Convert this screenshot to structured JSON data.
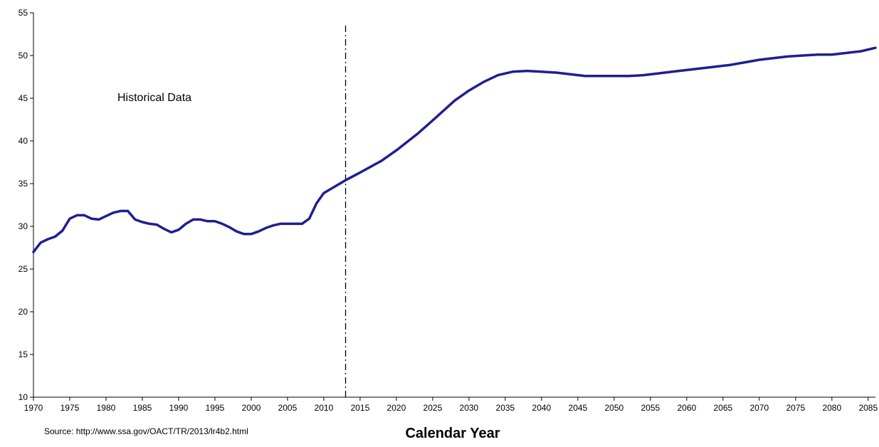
{
  "chart_data": {
    "type": "line",
    "title": "",
    "xlabel": "Calendar Year",
    "ylabel": "",
    "xlim": [
      1970,
      2086
    ],
    "ylim": [
      10,
      55
    ],
    "yticks": [
      10,
      15,
      20,
      25,
      30,
      35,
      40,
      45,
      50,
      55
    ],
    "xticks": [
      1970,
      1975,
      1980,
      1985,
      1990,
      1995,
      2000,
      2005,
      2010,
      2015,
      2020,
      2025,
      2030,
      2035,
      2040,
      2045,
      2050,
      2055,
      2060,
      2065,
      2070,
      2075,
      2080,
      2085
    ],
    "grid": false,
    "legend": "none",
    "divider_year": 2013,
    "annotation": "Historical Data",
    "source_note": "Source:  http://www.ssa.gov/OACT/TR/2013/lr4b2.html",
    "series_color": "#1f1f8f",
    "series": [
      {
        "x": [
          1970,
          1971,
          1972,
          1973,
          1974,
          1975,
          1976,
          1977,
          1978,
          1979,
          1980,
          1981,
          1982,
          1983,
          1984,
          1985,
          1986,
          1987,
          1988,
          1989,
          1990,
          1991,
          1992,
          1993,
          1994,
          1995,
          1996,
          1997,
          1998,
          1999,
          2000,
          2001,
          2002,
          2003,
          2004,
          2005,
          2006,
          2007,
          2008,
          2009,
          2010,
          2011,
          2012,
          2013,
          2015,
          2018,
          2020,
          2023,
          2025,
          2028,
          2030,
          2032,
          2034,
          2036,
          2038,
          2040,
          2042,
          2044,
          2046,
          2048,
          2050,
          2052,
          2054,
          2056,
          2058,
          2060,
          2062,
          2064,
          2066,
          2068,
          2070,
          2072,
          2074,
          2076,
          2078,
          2080,
          2082,
          2084,
          2086
        ],
        "y": [
          27.0,
          28.1,
          28.5,
          28.8,
          29.5,
          30.9,
          31.3,
          31.3,
          30.9,
          30.8,
          31.2,
          31.6,
          31.8,
          31.8,
          30.8,
          30.5,
          30.3,
          30.2,
          29.7,
          29.3,
          29.6,
          30.3,
          30.8,
          30.8,
          30.6,
          30.6,
          30.3,
          29.9,
          29.4,
          29.1,
          29.1,
          29.4,
          29.8,
          30.1,
          30.3,
          30.3,
          30.3,
          30.3,
          30.9,
          32.7,
          33.9,
          34.4,
          34.9,
          35.4,
          36.3,
          37.7,
          38.9,
          40.9,
          42.4,
          44.7,
          45.9,
          46.9,
          47.7,
          48.1,
          48.2,
          48.1,
          48.0,
          47.8,
          47.6,
          47.6,
          47.6,
          47.6,
          47.7,
          47.9,
          48.1,
          48.3,
          48.5,
          48.7,
          48.9,
          49.2,
          49.5,
          49.7,
          49.9,
          50.0,
          50.1,
          50.1,
          50.3,
          50.5,
          50.9
        ]
      }
    ]
  }
}
